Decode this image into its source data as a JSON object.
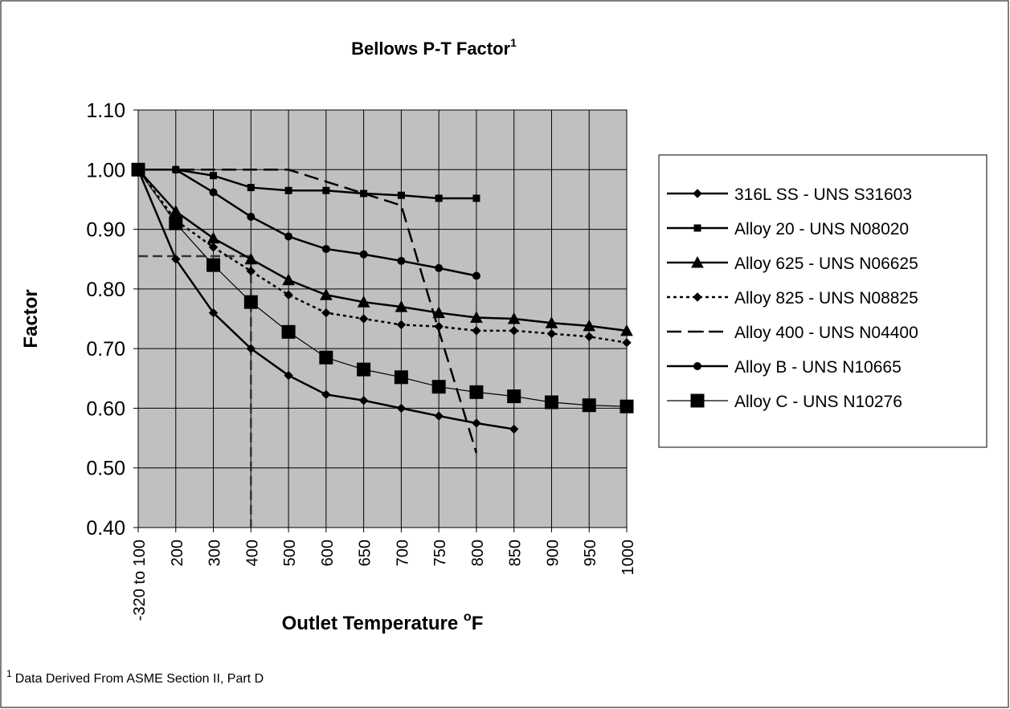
{
  "chart_data": {
    "type": "line",
    "title": "Bellows P-T Factor",
    "title_note": "1",
    "x_label": "Outlet Temperature ",
    "x_label_degree": "o",
    "x_label_unit": "F",
    "y_label": "Factor",
    "categories": [
      "-320 to 100",
      "200",
      "300",
      "400",
      "500",
      "600",
      "650",
      "700",
      "750",
      "800",
      "850",
      "900",
      "950",
      "1000"
    ],
    "ylim": [
      0.4,
      1.1
    ],
    "yticks": [
      {
        "value": 0.4,
        "label": "0.40"
      },
      {
        "value": 0.5,
        "label": "0.50"
      },
      {
        "value": 0.6,
        "label": "0.60"
      },
      {
        "value": 0.7,
        "label": "0.70"
      },
      {
        "value": 0.8,
        "label": "0.80"
      },
      {
        "value": 0.9,
        "label": "0.90"
      },
      {
        "value": 1.0,
        "label": "1.00"
      },
      {
        "value": 1.1,
        "label": "1.10"
      }
    ],
    "grid": true,
    "plot_background": "#c0c0c0",
    "legend": "right",
    "series": [
      {
        "name": "316L SS - UNS S31603",
        "color": "#000000",
        "marker": "diamond",
        "dash": "solid",
        "values": [
          1.0,
          0.85,
          0.76,
          0.7,
          0.655,
          0.623,
          0.613,
          0.6,
          0.587,
          0.575,
          0.565,
          null,
          null,
          null
        ]
      },
      {
        "name": "Alloy 20 - UNS N08020",
        "color": "#000000",
        "marker": "square",
        "dash": "solid",
        "values": [
          1.0,
          1.0,
          0.99,
          0.97,
          0.965,
          0.965,
          0.96,
          0.957,
          0.952,
          0.952,
          null,
          null,
          null,
          null
        ]
      },
      {
        "name": "Alloy 625 - UNS N06625",
        "color": "#000000",
        "marker": "triangle",
        "dash": "solid",
        "values": [
          1.0,
          0.93,
          0.885,
          0.85,
          0.815,
          0.79,
          0.778,
          0.77,
          0.76,
          0.752,
          0.75,
          0.743,
          0.738,
          0.73
        ]
      },
      {
        "name": "Alloy 825 - UNS N08825",
        "color": "#000000",
        "marker": "diamond",
        "dash": "dotted",
        "values": [
          1.0,
          0.915,
          0.87,
          0.83,
          0.79,
          0.76,
          0.75,
          0.74,
          0.737,
          0.73,
          0.73,
          0.725,
          0.72,
          0.71
        ]
      },
      {
        "name": "Alloy 400 - UNS N04400",
        "color": "#000000",
        "marker": "dash",
        "dash": "dashed",
        "values": [
          1.0,
          1.0,
          1.0,
          1.0,
          1.0,
          0.98,
          0.96,
          0.94,
          0.73,
          0.525,
          null,
          null,
          null,
          null
        ]
      },
      {
        "name": "Alloy B - UNS N10665",
        "color": "#000000",
        "marker": "circle",
        "dash": "solid",
        "values": [
          1.0,
          1.0,
          0.962,
          0.921,
          0.888,
          0.867,
          0.858,
          0.847,
          0.835,
          0.822,
          null,
          null,
          null,
          null
        ]
      },
      {
        "name": "Alloy C - UNS N10276",
        "color": "#000000",
        "marker": "bigsquare",
        "dash": "thin",
        "values": [
          1.0,
          0.91,
          0.84,
          0.778,
          0.728,
          0.685,
          0.665,
          0.652,
          0.636,
          0.627,
          0.62,
          0.61,
          0.605,
          0.603
        ]
      }
    ],
    "reference": {
      "category_index": 3,
      "value": 0.855
    },
    "footnote_mark": "1",
    "footnote": "Data Derived From ASME Section II, Part D"
  }
}
